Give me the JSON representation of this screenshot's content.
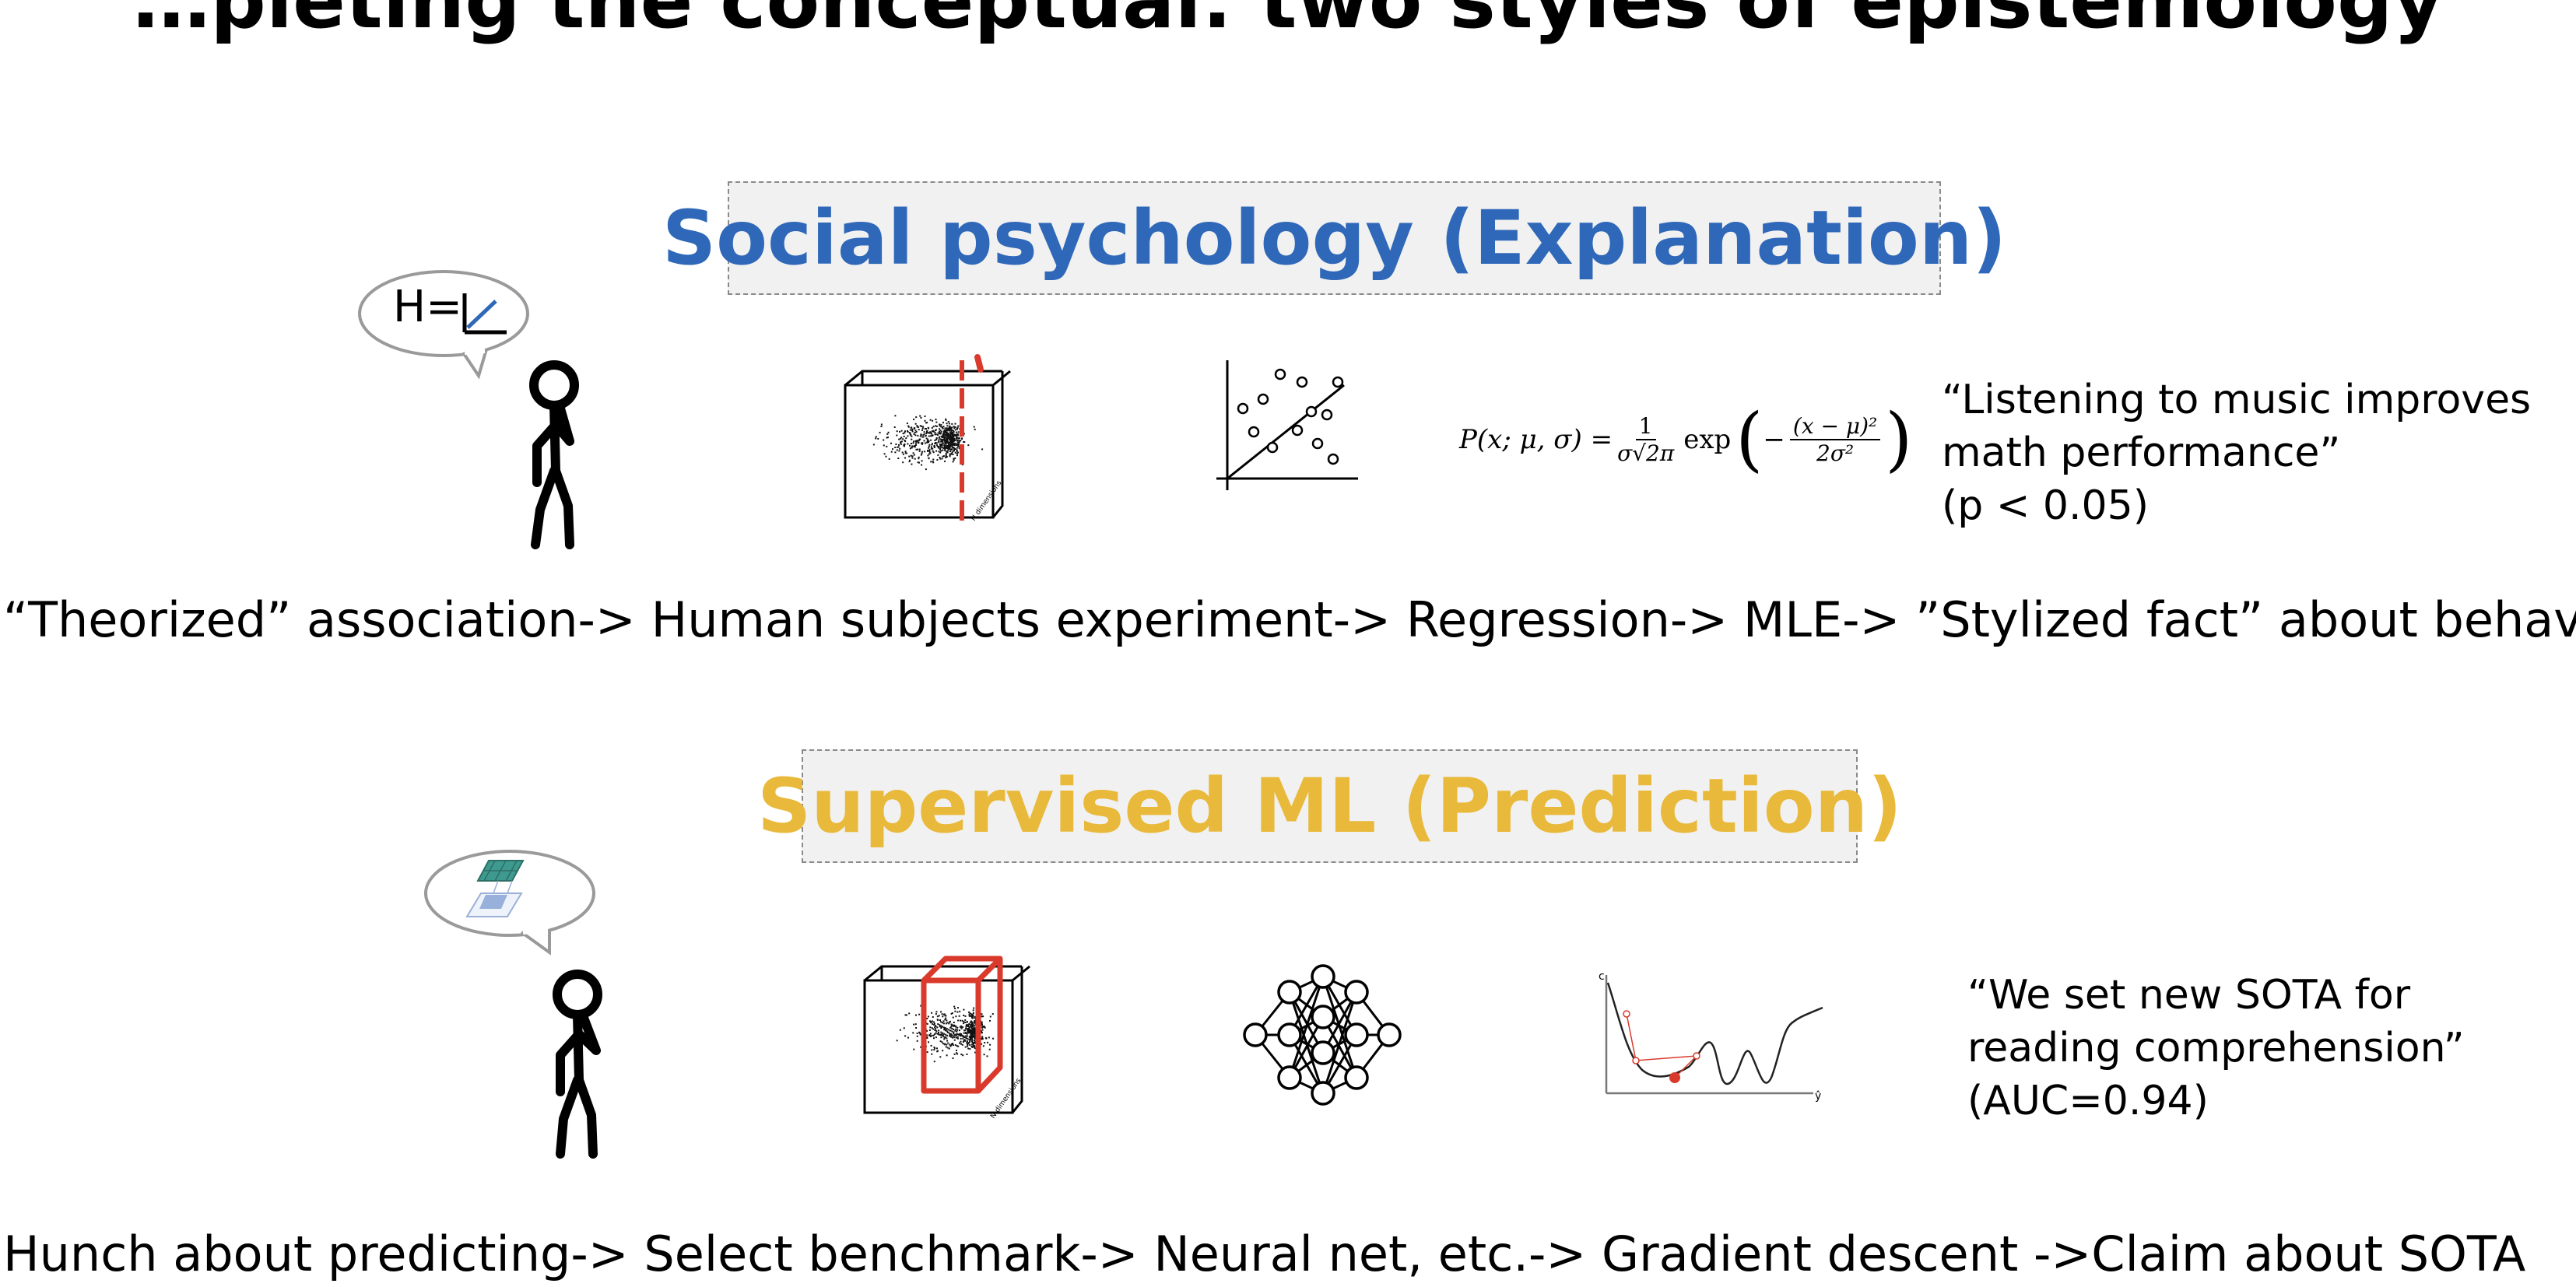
{
  "top_title_partial": "…pleting the conceptual: two styles of epistemology",
  "social": {
    "title": "Social psychology (Explanation)",
    "title_color": "#2f68b8",
    "bubble_text": "H=",
    "equation": {
      "lhs": "P(x; μ, σ) =",
      "frac1_num": "1",
      "frac1_den": "σ√2π",
      "exp": "exp",
      "frac2_num": "(x − μ)²",
      "frac2_den": "2σ²",
      "minus": "−"
    },
    "claim_lines": [
      "“Listening to music improves",
      "math performance”",
      "(p < 0.05)"
    ],
    "pipeline": "“Theorized” association->  Human subjects experiment-> Regression-> MLE-> ”Stylized fact” about behavior",
    "axis_caption": "N dimensions"
  },
  "ml": {
    "title": "Supervised ML (Prediction)",
    "title_color": "#e8b93a",
    "claim_lines": [
      "“We set new SOTA for",
      "reading comprehension”",
      "(AUC=0.94)"
    ],
    "pipeline": "Hunch about predicting-> Select benchmark-> Neural net, etc.-> Gradient descent ->Claim about SOTA",
    "axis_caption": "N dimensions",
    "loss_axis_y": "c",
    "loss_axis_x": "ŷ"
  },
  "accent_red": "#d93a2b",
  "icons": [
    "stick-figure-icon",
    "speech-bubble-icon",
    "data-cube-icon",
    "scatter-plot-icon",
    "neural-net-icon",
    "loss-curve-icon"
  ]
}
